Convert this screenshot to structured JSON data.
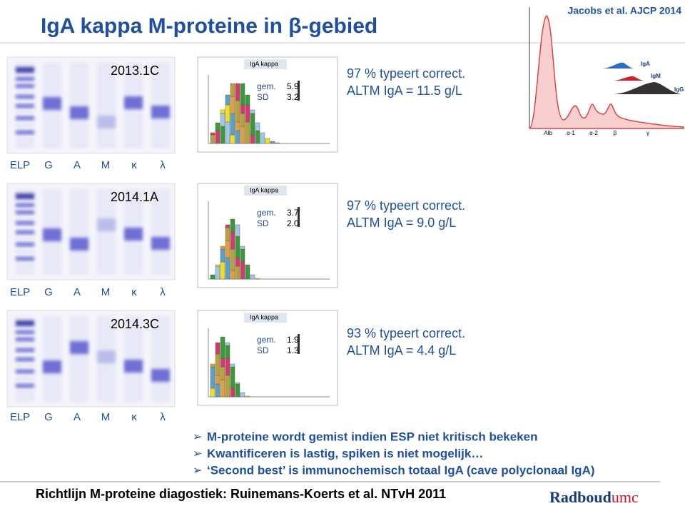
{
  "header": {
    "title": "IgA kappa M-proteine in β-gebied",
    "citation": "Jacobs et al. AJCP 2014"
  },
  "rows": [
    {
      "sample": "2013.1C",
      "lanes": [
        "ELP",
        "G",
        "A",
        "M",
        "κ",
        "λ"
      ],
      "histogram": {
        "title": "IgA kappa",
        "labels": [
          "gem.",
          "SD"
        ],
        "values": [
          "5.9",
          "3.2"
        ]
      },
      "lines": [
        "97 % typeert correct.",
        "ALTM IgA = 11.5 g/L"
      ]
    },
    {
      "sample": "2014.1A",
      "lanes": [
        "ELP",
        "G",
        "A",
        "M",
        "κ",
        "λ"
      ],
      "histogram": {
        "title": "IgA kappa",
        "labels": [
          "gem.",
          "SD"
        ],
        "values": [
          "3.7",
          "2.0"
        ]
      },
      "lines": [
        "97 % typeert correct.",
        "ALTM IgA = 9.0 g/L"
      ]
    },
    {
      "sample": "2014.3C",
      "lanes": [
        "ELP",
        "G",
        "A",
        "M",
        "κ",
        "λ"
      ],
      "histogram": {
        "title": "IgA kappa",
        "labels": [
          "gem.",
          "SD"
        ],
        "values": [
          "1.9",
          "1.3"
        ]
      },
      "lines": [
        "93 % typeert correct.",
        "ALTM IgA = 4.4 g/L"
      ]
    }
  ],
  "electropherogram": {
    "fractions": [
      "Alb",
      "α-1",
      "α-2",
      "β",
      "γ"
    ],
    "legend": [
      "IgA",
      "IgM",
      "IgG"
    ]
  },
  "bullets": [
    "M-proteine wordt gemist indien ESP niet kritisch bekeken",
    "Kwantificeren is lastig, spiken is niet mogelijk…",
    "‘Second best’ is immunochemisch totaal IgA (cave polyclonaal IgA)"
  ],
  "footer": {
    "text": "Richtlijn M-proteine diagostiek: Ruinemans-Koerts et al. NTvH 2011",
    "logo": [
      "Radboud",
      "umc"
    ]
  }
}
